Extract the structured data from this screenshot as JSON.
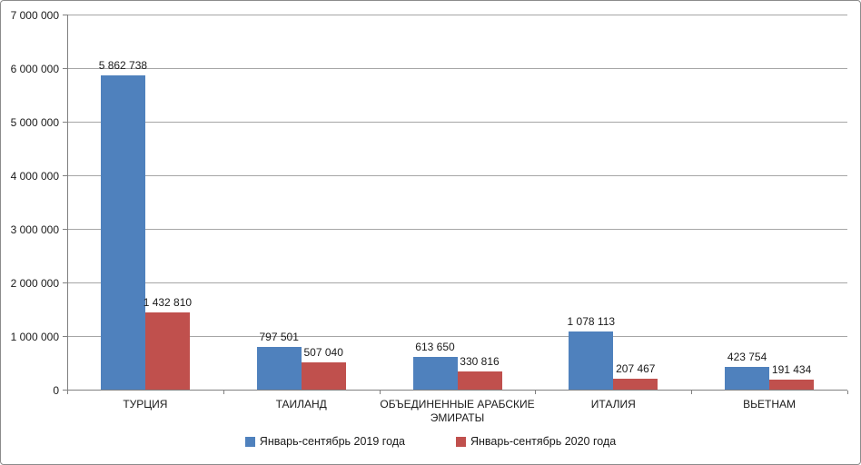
{
  "chart_data": {
    "type": "bar",
    "title": "",
    "xlabel": "",
    "ylabel": "",
    "categories": [
      "ТУРЦИЯ",
      "ТАИЛАНД",
      "ОБЪЕДИНЕННЫЕ АРАБСКИЕ ЭМИРАТЫ",
      "ИТАЛИЯ",
      "ВЬЕТНАМ"
    ],
    "series": [
      {
        "name": "Январь-сентябрь 2019 года",
        "color": "#4F81BD",
        "values": [
          5862738,
          797501,
          613650,
          1078113,
          423754
        ]
      },
      {
        "name": "Январь-сентябрь 2020 года",
        "color": "#C0504D",
        "values": [
          1432810,
          507040,
          330816,
          207467,
          191434
        ]
      }
    ],
    "data_labels": [
      [
        "5 862 738",
        "797 501",
        "613 650",
        "1 078 113",
        "423 754"
      ],
      [
        "1 432 810",
        "507 040",
        "330 816",
        "207 467",
        "191 434"
      ]
    ],
    "ytick_labels": [
      "0",
      "1 000 000",
      "2 000 000",
      "3 000 000",
      "4 000 000",
      "5 000 000",
      "6 000 000",
      "7 000 000"
    ],
    "ylim": [
      0,
      7000000
    ],
    "ytick_step": 1000000,
    "grid": true,
    "legend_position": "bottom",
    "number_format": "space-thousands"
  },
  "colors": {
    "gridline": "#a6a6a6",
    "axis": "#808080",
    "frame_border": "#8c8c8c",
    "text": "#1a1a1a",
    "background": "#ffffff",
    "series_2019": "#4F81BD",
    "series_2020": "#C0504D"
  }
}
